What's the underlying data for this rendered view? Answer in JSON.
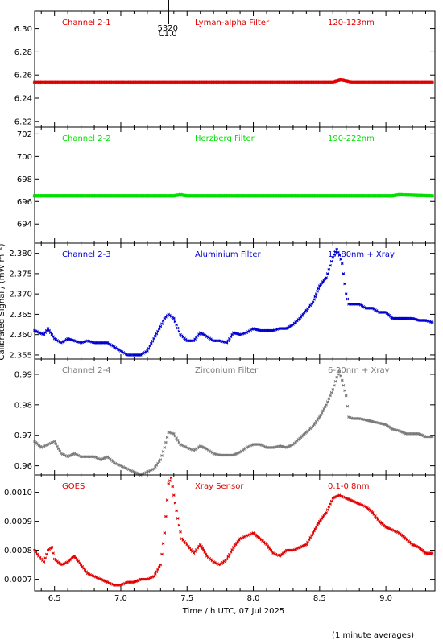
{
  "chart_data": [
    {
      "type": "scatter",
      "labels": [
        "Channel 2-1",
        "Lyman-alpha Filter",
        "120-123nm"
      ],
      "color": "#e00000",
      "yticks": [
        "6.22",
        "6.24",
        "6.26",
        "6.28",
        "6.30"
      ],
      "ylim": [
        6.215,
        6.315
      ],
      "annotation": {
        "lines": [
          "5320",
          "C1.0"
        ],
        "x": 7.36
      },
      "x": [
        6.35,
        8.6,
        8.63,
        8.66,
        8.7,
        8.74,
        9.35
      ],
      "values": [
        6.254,
        6.254,
        6.255,
        6.256,
        6.255,
        6.254,
        6.254
      ]
    },
    {
      "type": "scatter",
      "labels": [
        "Channel 2-2",
        "Herzberg Filter",
        "190-222nm"
      ],
      "color": "#00e000",
      "yticks": [
        "694",
        "696",
        "698",
        "700",
        "702"
      ],
      "ylim": [
        692.3,
        702.6
      ],
      "x": [
        6.35,
        7.4,
        7.45,
        7.5,
        9.05,
        9.1,
        9.35
      ],
      "values": [
        696.5,
        696.5,
        696.6,
        696.5,
        696.5,
        696.6,
        696.5
      ]
    },
    {
      "type": "scatter",
      "labels": [
        "Channel 2-3",
        "Aluminium Filter",
        "17-80nm + Xray"
      ],
      "color": "#0000d0",
      "yticks": [
        "2.355",
        "2.360",
        "2.365",
        "2.370",
        "2.375",
        "2.380"
      ],
      "ylim": [
        2.354,
        2.3825
      ],
      "x": [
        6.35,
        6.42,
        6.45,
        6.5,
        6.55,
        6.6,
        6.65,
        6.7,
        6.75,
        6.8,
        6.85,
        6.9,
        6.95,
        7.0,
        7.05,
        7.1,
        7.15,
        7.2,
        7.25,
        7.3,
        7.33,
        7.36,
        7.4,
        7.45,
        7.5,
        7.55,
        7.6,
        7.65,
        7.7,
        7.75,
        7.8,
        7.85,
        7.9,
        7.95,
        8.0,
        8.05,
        8.1,
        8.15,
        8.2,
        8.25,
        8.3,
        8.35,
        8.4,
        8.45,
        8.5,
        8.55,
        8.6,
        8.63,
        8.65,
        8.67,
        8.7,
        8.72,
        8.75,
        8.8,
        8.85,
        8.9,
        8.95,
        9.0,
        9.05,
        9.1,
        9.15,
        9.2,
        9.25,
        9.3,
        9.35
      ],
      "values": [
        2.361,
        2.36,
        2.3615,
        2.359,
        2.358,
        2.359,
        2.3585,
        2.358,
        2.3585,
        2.358,
        2.358,
        2.358,
        2.357,
        2.356,
        2.355,
        2.355,
        2.355,
        2.356,
        2.359,
        2.362,
        2.364,
        2.365,
        2.364,
        2.36,
        2.3585,
        2.3585,
        2.3605,
        2.3595,
        2.3585,
        2.3585,
        2.358,
        2.3605,
        2.36,
        2.3605,
        2.3615,
        2.361,
        2.361,
        2.361,
        2.3615,
        2.3615,
        2.3625,
        2.364,
        2.366,
        2.368,
        2.372,
        2.374,
        2.379,
        2.381,
        2.3795,
        2.3775,
        2.37,
        2.3675,
        2.3675,
        2.3675,
        2.3665,
        2.3665,
        2.3655,
        2.3655,
        2.364,
        2.364,
        2.364,
        2.364,
        2.3635,
        2.3635,
        2.363
      ]
    },
    {
      "type": "scatter",
      "labels": [
        "Channel 2-4",
        "Zirconium Filter",
        "6-20nm + Xray"
      ],
      "color": "#7a7a7a",
      "yticks": [
        "0.96",
        "0.97",
        "0.98",
        "0.99"
      ],
      "ylim": [
        0.957,
        0.995
      ],
      "x": [
        6.35,
        6.4,
        6.45,
        6.5,
        6.55,
        6.6,
        6.65,
        6.7,
        6.75,
        6.8,
        6.85,
        6.9,
        6.95,
        7.0,
        7.05,
        7.1,
        7.15,
        7.2,
        7.25,
        7.3,
        7.33,
        7.36,
        7.4,
        7.45,
        7.5,
        7.55,
        7.6,
        7.65,
        7.7,
        7.75,
        7.8,
        7.85,
        7.9,
        7.95,
        8.0,
        8.05,
        8.1,
        8.15,
        8.2,
        8.25,
        8.3,
        8.35,
        8.4,
        8.45,
        8.5,
        8.55,
        8.6,
        8.63,
        8.65,
        8.67,
        8.7,
        8.72,
        8.75,
        8.8,
        8.85,
        8.9,
        8.95,
        9.0,
        9.05,
        9.1,
        9.15,
        9.2,
        9.25,
        9.3,
        9.35
      ],
      "values": [
        0.968,
        0.966,
        0.967,
        0.968,
        0.964,
        0.963,
        0.964,
        0.963,
        0.963,
        0.963,
        0.962,
        0.963,
        0.961,
        0.96,
        0.959,
        0.958,
        0.957,
        0.958,
        0.959,
        0.962,
        0.966,
        0.971,
        0.9705,
        0.967,
        0.966,
        0.965,
        0.9665,
        0.9655,
        0.964,
        0.9635,
        0.9635,
        0.9635,
        0.9645,
        0.966,
        0.967,
        0.967,
        0.966,
        0.966,
        0.9665,
        0.966,
        0.967,
        0.969,
        0.971,
        0.973,
        0.976,
        0.98,
        0.985,
        0.989,
        0.991,
        0.988,
        0.983,
        0.976,
        0.9755,
        0.9755,
        0.975,
        0.9745,
        0.974,
        0.9735,
        0.972,
        0.9715,
        0.9705,
        0.9705,
        0.9705,
        0.9695,
        0.9695
      ]
    },
    {
      "type": "scatter",
      "labels": [
        "GOES",
        "Xray Sensor",
        "0.1-0.8nm"
      ],
      "color": "#e00000",
      "yticks": [
        "0.0007",
        "0.0008",
        "0.0009",
        "0.0010"
      ],
      "ylim": [
        0.00066,
        0.00106
      ],
      "xticks": [
        "6.5",
        "7.0",
        "7.5",
        "8.0",
        "8.5",
        "9.0"
      ],
      "xlim": [
        6.35,
        9.37
      ],
      "xlabel": "Time / h UTC, 07 Jul 2025",
      "x": [
        6.35,
        6.38,
        6.42,
        6.45,
        6.48,
        6.5,
        6.55,
        6.6,
        6.65,
        6.7,
        6.75,
        6.8,
        6.85,
        6.9,
        6.95,
        7.0,
        7.05,
        7.1,
        7.15,
        7.2,
        7.25,
        7.3,
        7.33,
        7.36,
        7.38,
        7.4,
        7.43,
        7.46,
        7.5,
        7.55,
        7.6,
        7.65,
        7.7,
        7.75,
        7.8,
        7.85,
        7.9,
        7.95,
        8.0,
        8.05,
        8.1,
        8.15,
        8.2,
        8.25,
        8.3,
        8.35,
        8.4,
        8.45,
        8.5,
        8.55,
        8.6,
        8.65,
        8.7,
        8.75,
        8.8,
        8.85,
        8.9,
        8.95,
        9.0,
        9.05,
        9.1,
        9.15,
        9.2,
        9.25,
        9.3,
        9.35
      ],
      "values": [
        0.0008,
        0.00078,
        0.00076,
        0.0008,
        0.00081,
        0.00077,
        0.00075,
        0.00076,
        0.00078,
        0.00075,
        0.00072,
        0.00071,
        0.0007,
        0.00069,
        0.00068,
        0.00068,
        0.00069,
        0.00069,
        0.0007,
        0.0007,
        0.00071,
        0.00075,
        0.00086,
        0.00103,
        0.00105,
        0.00099,
        0.00091,
        0.00084,
        0.00082,
        0.00079,
        0.00082,
        0.00078,
        0.00076,
        0.00075,
        0.00077,
        0.00081,
        0.00084,
        0.00085,
        0.00086,
        0.00084,
        0.00082,
        0.00079,
        0.00078,
        0.0008,
        0.0008,
        0.00081,
        0.00082,
        0.00086,
        0.0009,
        0.00093,
        0.00098,
        0.00099,
        0.00098,
        0.00097,
        0.00096,
        0.00095,
        0.00093,
        0.0009,
        0.00088,
        0.00087,
        0.00086,
        0.00084,
        0.00082,
        0.00081,
        0.00079,
        0.00079
      ]
    }
  ],
  "ylabel": "Calibrated Signal / (mW m⁻²)",
  "footnote": "(1 minute averages)"
}
